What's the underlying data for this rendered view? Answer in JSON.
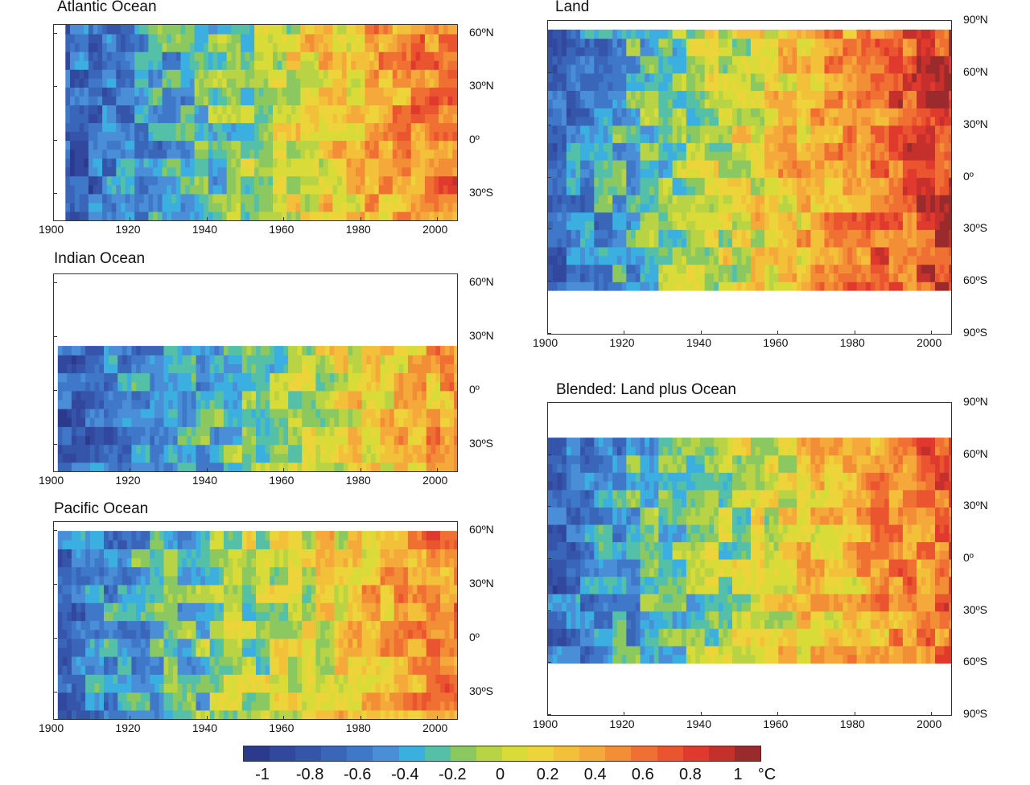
{
  "chart_data": [
    {
      "type": "heatmap",
      "title": "Atlantic Ocean",
      "x_ticks": [
        "1900",
        "1920",
        "1940",
        "1960",
        "1980",
        "2000"
      ],
      "y_ticks": [
        "60ºN",
        "30ºN",
        "0º",
        "30ºS"
      ],
      "xlim": [
        1900,
        2005
      ],
      "ylim": [
        -45,
        65
      ],
      "data_years": [
        1903,
        2005
      ],
      "data_lats": [
        -45,
        62
      ],
      "anomaly_start": -0.7,
      "anomaly_end": 0.6
    },
    {
      "type": "heatmap",
      "title": "Indian Ocean",
      "x_ticks": [
        "1900",
        "1920",
        "1940",
        "1960",
        "1980",
        "2000"
      ],
      "y_ticks": [
        "60ºN",
        "30ºN",
        "0º",
        "30ºS"
      ],
      "xlim": [
        1900,
        2005
      ],
      "ylim": [
        -45,
        65
      ],
      "data_years": [
        1901,
        2005
      ],
      "data_lats": [
        -45,
        25
      ],
      "anomaly_start": -0.7,
      "anomaly_end": 0.4
    },
    {
      "type": "heatmap",
      "title": "Pacific Ocean",
      "x_ticks": [
        "1900",
        "1920",
        "1940",
        "1960",
        "1980",
        "2000"
      ],
      "y_ticks": [
        "60ºN",
        "30ºN",
        "0º",
        "30ºS"
      ],
      "xlim": [
        1900,
        2005
      ],
      "ylim": [
        -45,
        65
      ],
      "data_years": [
        1901,
        2005
      ],
      "data_lats": [
        -45,
        60
      ],
      "anomaly_start": -0.6,
      "anomaly_end": 0.5
    },
    {
      "type": "heatmap",
      "title": "Land",
      "x_ticks": [
        "1900",
        "1920",
        "1940",
        "1960",
        "1980",
        "2000"
      ],
      "y_ticks": [
        "90ºN",
        "60ºN",
        "30ºN",
        "0º",
        "30ºS",
        "60ºS",
        "90ºS"
      ],
      "xlim": [
        1900,
        2005
      ],
      "ylim": [
        -90,
        90
      ],
      "data_years": [
        1900,
        2005
      ],
      "data_lats": [
        -65,
        85
      ],
      "anomaly_start": -0.6,
      "anomaly_end": 0.8
    },
    {
      "type": "heatmap",
      "title": "Blended: Land plus Ocean",
      "x_ticks": [
        "1900",
        "1920",
        "1940",
        "1960",
        "1980",
        "2000"
      ],
      "y_ticks": [
        "90ºN",
        "60ºN",
        "30ºN",
        "0º",
        "30ºS",
        "60ºS",
        "90ºS"
      ],
      "xlim": [
        1900,
        2005
      ],
      "ylim": [
        -90,
        90
      ],
      "data_years": [
        1900,
        2005
      ],
      "data_lats": [
        -60,
        70
      ],
      "anomaly_start": -0.6,
      "anomaly_end": 0.6
    }
  ],
  "colorbar": {
    "unit": "°C",
    "labels": [
      "-1",
      "-0.8",
      "-0.6",
      "-0.4",
      "-0.2",
      "0",
      "0.2",
      "0.4",
      "0.6",
      "0.8",
      "1"
    ],
    "range": [
      -1,
      1
    ],
    "colors": [
      "#2b3a8c",
      "#32479e",
      "#3555ab",
      "#3a66ba",
      "#3f78c8",
      "#4a8ed8",
      "#3aafe0",
      "#55c0a8",
      "#8cc860",
      "#b8d444",
      "#d9dc38",
      "#ecd43a",
      "#f3c03a",
      "#f4a93a",
      "#f28e35",
      "#ef7032",
      "#ea5530",
      "#e0392d",
      "#c5302c",
      "#9a2a2b"
    ]
  }
}
